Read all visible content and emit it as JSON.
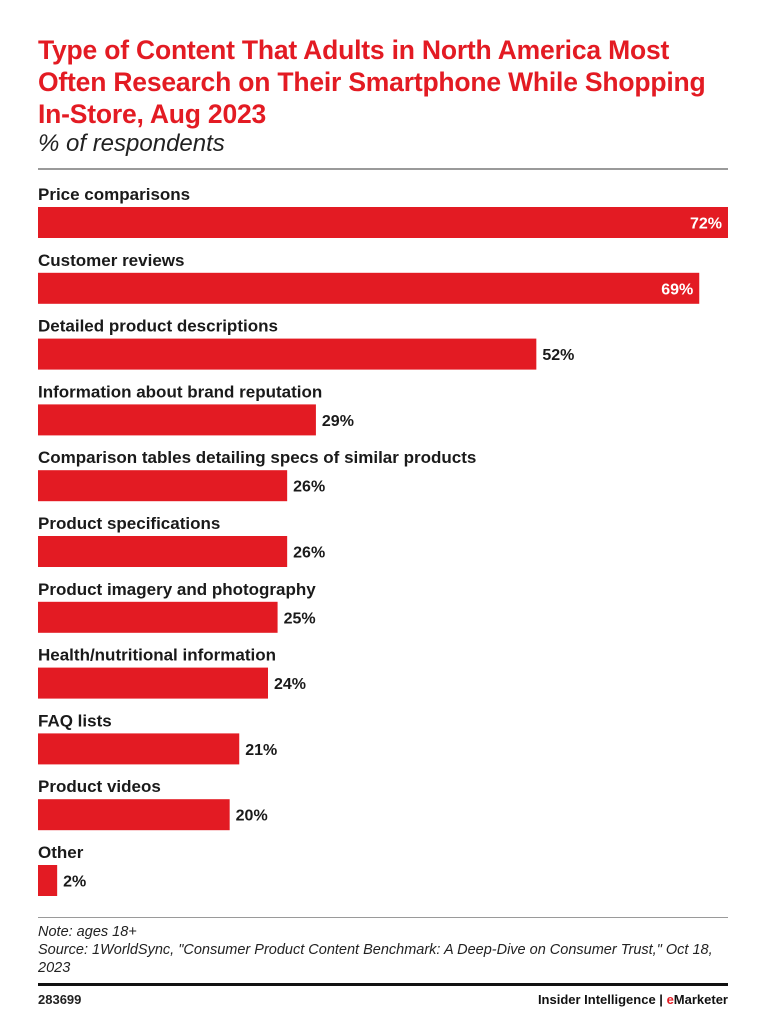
{
  "colors": {
    "accent": "#e31b23",
    "text": "#1a1a1a",
    "rule": "#9a9a9a"
  },
  "header": {
    "title": "Type of Content That Adults in North America Most Often Research on Their Smartphone While Shopping In-Store, Aug 2023",
    "subtitle": "% of respondents"
  },
  "chart_data": {
    "type": "bar",
    "orientation": "horizontal",
    "title": "Type of Content That Adults in North America Most Often Research on Their Smartphone While Shopping In-Store, Aug 2023",
    "subtitle": "% of respondents",
    "xlabel": "",
    "ylabel": "",
    "unit": "%",
    "xlim": [
      0,
      72
    ],
    "categories": [
      "Price comparisons",
      "Customer reviews",
      "Detailed product descriptions",
      "Information about brand reputation",
      "Comparison tables detailing specs of similar products",
      "Product specifications",
      "Product imagery and photography",
      "Health/nutritional information",
      "FAQ lists",
      "Product videos",
      "Other"
    ],
    "values": [
      72,
      69,
      52,
      29,
      26,
      26,
      25,
      24,
      21,
      20,
      2
    ],
    "labels": [
      "72%",
      "69%",
      "52%",
      "29%",
      "26%",
      "26%",
      "25%",
      "24%",
      "21%",
      "20%",
      "2%"
    ]
  },
  "footer": {
    "note": "Note: ages 18+",
    "source": "Source: 1WorldSync, \"Consumer Product Content Benchmark: A Deep-Dive on Consumer Trust,\" Oct 18, 2023",
    "chart_id": "283699",
    "brand_left": "Insider Intelligence | ",
    "brand_e": "e",
    "brand_right": "Marketer"
  }
}
